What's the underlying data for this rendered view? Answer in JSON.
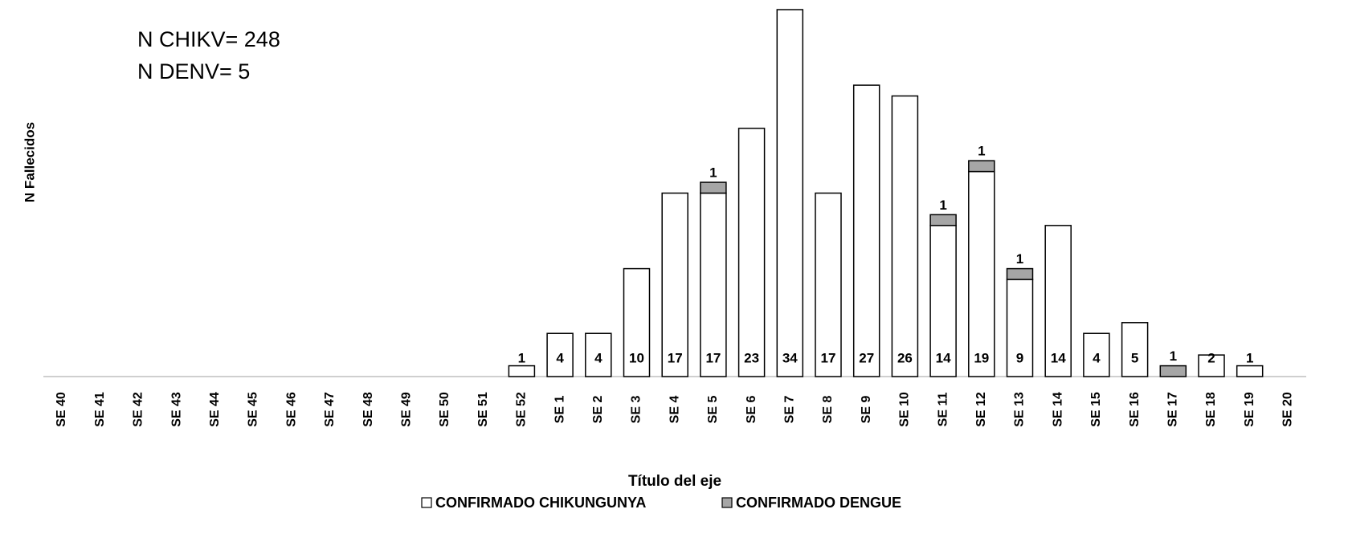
{
  "chart_data": {
    "type": "bar",
    "stacked": true,
    "annotations": [
      "N CHIKV= 248",
      "N DENV= 5"
    ],
    "ylabel": "N Fallecidos",
    "xlabel": "Título del eje",
    "categories": [
      "SE 40",
      "SE 41",
      "SE 42",
      "SE 43",
      "SE 44",
      "SE 45",
      "SE 46",
      "SE 47",
      "SE 48",
      "SE 49",
      "SE 50",
      "SE 51",
      "SE 52",
      "SE 1",
      "SE 2",
      "SE 3",
      "SE 4",
      "SE 5",
      "SE 6",
      "SE 7",
      "SE 8",
      "SE 9",
      "SE 10",
      "SE 11",
      "SE 12",
      "SE 13",
      "SE 14",
      "SE 15",
      "SE 16",
      "SE 17",
      "SE 18",
      "SE 19",
      "SE 20"
    ],
    "series": [
      {
        "name": "CONFIRMADO CHIKUNGUNYA",
        "color": "#ffffff",
        "values": [
          null,
          null,
          null,
          null,
          null,
          null,
          null,
          null,
          null,
          null,
          null,
          null,
          1,
          4,
          4,
          10,
          17,
          17,
          23,
          34,
          17,
          27,
          26,
          14,
          19,
          9,
          14,
          4,
          5,
          null,
          2,
          1,
          null
        ]
      },
      {
        "name": "CONFIRMADO DENGUE",
        "color": "#a6a6a6",
        "values": [
          null,
          null,
          null,
          null,
          null,
          null,
          null,
          null,
          null,
          null,
          null,
          null,
          null,
          null,
          null,
          null,
          null,
          1,
          null,
          null,
          null,
          null,
          null,
          1,
          1,
          1,
          null,
          null,
          null,
          1,
          null,
          null,
          null
        ]
      }
    ],
    "ylim": [
      0,
      34
    ],
    "legend": "bottom"
  }
}
